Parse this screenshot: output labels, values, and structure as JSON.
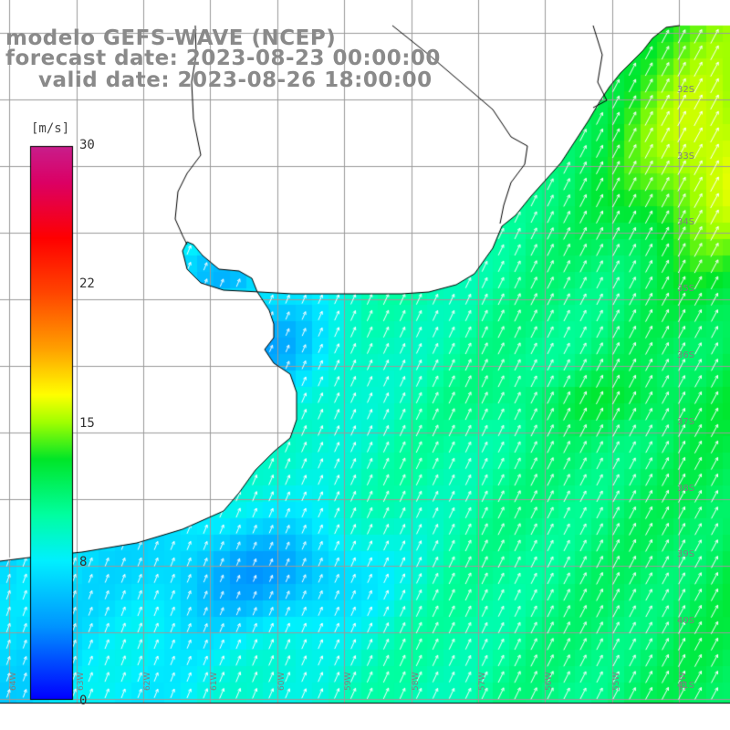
{
  "header": {
    "model": "modelo GEFS-WAVE (NCEP)",
    "forecast": "forecast date: 2023-08-23 00:00:00",
    "valid": "valid date: 2023-08-26 18:00:00"
  },
  "colorbar": {
    "unit": "[m/s]",
    "ticks": [
      "30",
      "22",
      "15",
      "8",
      "0"
    ],
    "stops": [
      "#0000ff",
      "#00b4ff",
      "#00ffff",
      "#00ff66",
      "#00e000",
      "#9cff00",
      "#ffff00",
      "#ff9900",
      "#ff3300",
      "#ff0000",
      "#d0006a",
      "#c81e8c"
    ]
  },
  "map": {
    "lat_labels": [
      "32S",
      "33S",
      "34S",
      "35S",
      "36S",
      "37S",
      "38S",
      "39S",
      "40S",
      "41S"
    ],
    "lon_labels": [
      "64W",
      "63W",
      "62W",
      "61W",
      "60W",
      "59W",
      "58W",
      "57W",
      "56W",
      "55W",
      "54W",
      "53W"
    ],
    "land_color": "#ffffff",
    "grid_color": "#9a9a9a",
    "coast_color": "#000000"
  }
}
